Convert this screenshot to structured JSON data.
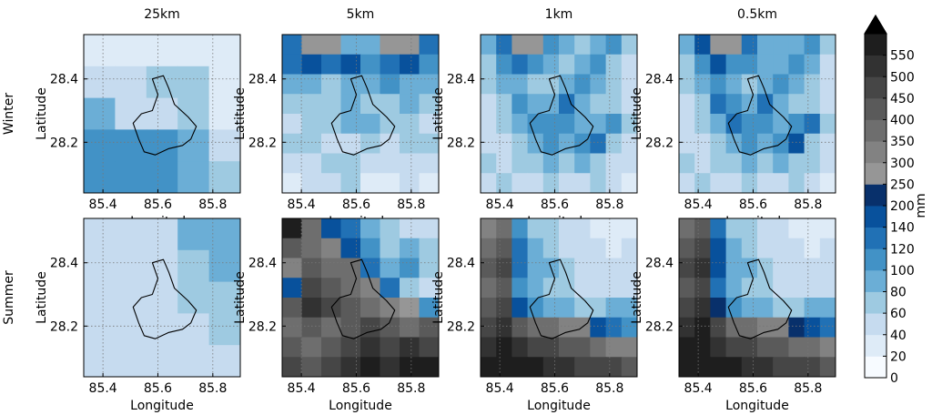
{
  "chart_data": {
    "type": "heatmap",
    "columns": [
      "25km",
      "5km",
      "1km",
      "0.5km"
    ],
    "rows": [
      "Winter",
      "Summer"
    ],
    "xlabel": "Longitude",
    "ylabel": "Latitude",
    "xticks": [
      "85.4",
      "85.6",
      "85.8"
    ],
    "yticks": [
      "28.4",
      "28.2"
    ],
    "xlim": [
      85.33,
      85.9
    ],
    "ylim": [
      28.04,
      28.54
    ],
    "colorbar": {
      "label": "mm",
      "levels": [
        0,
        20,
        40,
        60,
        80,
        100,
        120,
        140,
        200,
        250,
        300,
        350,
        400,
        450,
        500,
        550
      ],
      "tick_labels": [
        "0",
        "20",
        "40",
        "60",
        "80",
        "100",
        "120",
        "140",
        "200",
        "250",
        "300",
        "350",
        "400",
        "450",
        "500",
        "550"
      ],
      "colors": [
        "#f7fbff",
        "#deebf7",
        "#c6dbef",
        "#9ecae1",
        "#6baed6",
        "#4292c6",
        "#2171b5",
        "#08519c",
        "#08306b",
        "#969696",
        "#828282",
        "#6e6e6e",
        "#5a5a5a",
        "#464646",
        "#323232",
        "#1e1e1e"
      ],
      "extend": "max"
    },
    "grid": true,
    "panels": [
      {
        "row": "Winter",
        "column": "25km",
        "cells": [
          [
            1,
            1,
            1,
            1,
            1
          ],
          [
            2,
            2,
            3,
            3,
            1
          ],
          [
            4,
            2,
            2,
            3,
            1
          ],
          [
            5,
            5,
            5,
            4,
            2
          ],
          [
            5,
            5,
            5,
            4,
            3
          ]
        ]
      },
      {
        "row": "Winter",
        "column": "5km",
        "cells": [
          [
            6,
            9,
            9,
            4,
            4,
            9,
            9,
            6
          ],
          [
            6,
            7,
            6,
            7,
            5,
            6,
            7,
            5
          ],
          [
            4,
            4,
            3,
            4,
            4,
            5,
            4,
            4
          ],
          [
            3,
            3,
            3,
            4,
            3,
            3,
            4,
            3
          ],
          [
            2,
            3,
            3,
            4,
            4,
            3,
            3,
            2
          ],
          [
            3,
            3,
            2,
            2,
            3,
            2,
            3,
            3
          ],
          [
            2,
            2,
            3,
            3,
            2,
            2,
            2,
            2
          ],
          [
            1,
            2,
            2,
            3,
            1,
            1,
            2,
            1
          ]
        ]
      },
      {
        "row": "Winter",
        "column": "1km",
        "cells": [
          [
            4,
            6,
            9,
            9,
            5,
            4,
            3,
            4,
            5,
            3
          ],
          [
            3,
            5,
            6,
            5,
            4,
            3,
            4,
            5,
            3,
            2
          ],
          [
            3,
            4,
            4,
            3,
            3,
            4,
            5,
            4,
            3,
            2
          ],
          [
            2,
            3,
            5,
            4,
            4,
            6,
            4,
            3,
            3,
            2
          ],
          [
            2,
            3,
            4,
            5,
            5,
            5,
            4,
            4,
            5,
            3
          ],
          [
            2,
            2,
            3,
            4,
            5,
            4,
            5,
            6,
            3,
            2
          ],
          [
            3,
            2,
            3,
            3,
            4,
            3,
            4,
            3,
            2,
            2
          ],
          [
            2,
            3,
            2,
            2,
            3,
            2,
            2,
            3,
            2,
            1
          ]
        ]
      },
      {
        "row": "Winter",
        "column": "0.5km",
        "cells": [
          [
            4,
            7,
            9,
            9,
            6,
            4,
            4,
            4,
            5,
            3
          ],
          [
            3,
            5,
            7,
            5,
            5,
            4,
            4,
            5,
            4,
            2
          ],
          [
            3,
            4,
            5,
            4,
            3,
            4,
            5,
            4,
            3,
            2
          ],
          [
            2,
            3,
            6,
            5,
            4,
            6,
            4,
            3,
            3,
            2
          ],
          [
            2,
            3,
            4,
            6,
            5,
            5,
            4,
            5,
            6,
            3
          ],
          [
            2,
            2,
            3,
            4,
            5,
            4,
            5,
            7,
            3,
            2
          ],
          [
            3,
            2,
            3,
            3,
            4,
            3,
            4,
            3,
            3,
            2
          ],
          [
            2,
            3,
            2,
            2,
            3,
            2,
            2,
            3,
            2,
            1
          ]
        ]
      },
      {
        "row": "Summer",
        "column": "25km",
        "cells": [
          [
            2,
            2,
            2,
            4,
            4
          ],
          [
            2,
            2,
            2,
            3,
            4
          ],
          [
            2,
            2,
            2,
            3,
            3
          ],
          [
            2,
            2,
            2,
            2,
            3
          ],
          [
            2,
            2,
            2,
            2,
            2
          ]
        ]
      },
      {
        "row": "Summer",
        "column": "5km",
        "cells": [
          [
            15,
            11,
            7,
            6,
            4,
            3,
            2,
            2
          ],
          [
            12,
            11,
            10,
            7,
            5,
            3,
            4,
            3
          ],
          [
            10,
            12,
            11,
            11,
            6,
            4,
            5,
            3
          ],
          [
            7,
            13,
            12,
            11,
            10,
            6,
            3,
            2
          ],
          [
            12,
            14,
            13,
            12,
            11,
            10,
            9,
            5
          ],
          [
            11,
            12,
            11,
            12,
            13,
            12,
            11,
            12
          ],
          [
            12,
            11,
            12,
            13,
            14,
            13,
            14,
            13
          ],
          [
            13,
            12,
            13,
            14,
            15,
            14,
            15,
            16
          ]
        ]
      },
      {
        "row": "Summer",
        "column": "1km",
        "cells": [
          [
            10,
            11,
            5,
            3,
            3,
            2,
            2,
            1,
            1,
            1
          ],
          [
            11,
            12,
            6,
            4,
            3,
            2,
            2,
            2,
            1,
            2
          ],
          [
            12,
            13,
            6,
            4,
            4,
            3,
            2,
            2,
            2,
            2
          ],
          [
            11,
            12,
            5,
            4,
            3,
            3,
            2,
            2,
            2,
            2
          ],
          [
            12,
            13,
            7,
            5,
            4,
            4,
            3,
            3,
            4,
            4
          ],
          [
            13,
            14,
            12,
            11,
            11,
            10,
            10,
            7,
            6,
            5
          ],
          [
            14,
            15,
            14,
            13,
            13,
            12,
            12,
            11,
            10,
            10
          ],
          [
            16,
            16,
            15,
            15,
            14,
            14,
            13,
            13,
            13,
            12
          ]
        ]
      },
      {
        "row": "Summer",
        "column": "0.5km",
        "cells": [
          [
            11,
            12,
            6,
            3,
            3,
            2,
            2,
            1,
            1,
            1
          ],
          [
            12,
            13,
            7,
            4,
            3,
            2,
            2,
            2,
            1,
            2
          ],
          [
            13,
            14,
            7,
            4,
            4,
            3,
            2,
            2,
            2,
            2
          ],
          [
            12,
            13,
            6,
            4,
            3,
            3,
            2,
            2,
            2,
            2
          ],
          [
            13,
            14,
            8,
            5,
            4,
            4,
            3,
            3,
            4,
            4
          ],
          [
            14,
            15,
            13,
            11,
            11,
            10,
            10,
            8,
            7,
            6
          ],
          [
            15,
            16,
            14,
            13,
            13,
            12,
            12,
            11,
            11,
            10
          ],
          [
            16,
            16,
            15,
            15,
            14,
            14,
            13,
            13,
            13,
            12
          ]
        ]
      }
    ],
    "outline": [
      [
        85.58,
        28.4
      ],
      [
        85.62,
        28.41
      ],
      [
        85.64,
        28.37
      ],
      [
        85.66,
        28.32
      ],
      [
        85.71,
        28.28
      ],
      [
        85.74,
        28.25
      ],
      [
        85.72,
        28.21
      ],
      [
        85.69,
        28.19
      ],
      [
        85.64,
        28.18
      ],
      [
        85.59,
        28.16
      ],
      [
        85.55,
        28.17
      ],
      [
        85.53,
        28.21
      ],
      [
        85.51,
        28.26
      ],
      [
        85.54,
        28.29
      ],
      [
        85.58,
        28.3
      ],
      [
        85.6,
        28.35
      ],
      [
        85.58,
        28.4
      ]
    ]
  }
}
